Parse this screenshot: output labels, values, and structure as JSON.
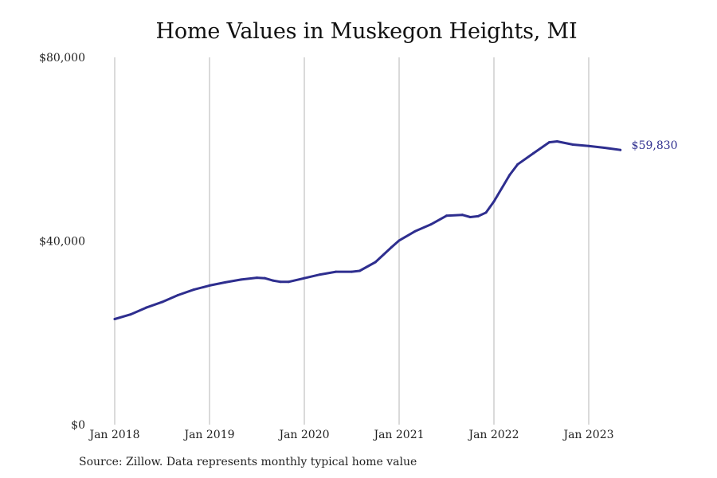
{
  "chart_data": {
    "type": "line",
    "title": "Home Values in Muskegon Heights, MI",
    "xlabel": "",
    "ylabel": "",
    "ylim": [
      0,
      80000
    ],
    "yticks": [
      {
        "value": 0,
        "label": "$0"
      },
      {
        "value": 40000,
        "label": "$40,000"
      },
      {
        "value": 80000,
        "label": "$80,000"
      }
    ],
    "xticks": [
      {
        "value": "2018-01",
        "label": "Jan 2018"
      },
      {
        "value": "2019-01",
        "label": "Jan 2019"
      },
      {
        "value": "2020-01",
        "label": "Jan 2020"
      },
      {
        "value": "2021-01",
        "label": "Jan 2021"
      },
      {
        "value": "2022-01",
        "label": "Jan 2022"
      },
      {
        "value": "2023-01",
        "label": "Jan 2023"
      }
    ],
    "grid": "vertical",
    "series": [
      {
        "color": "#2e2e8f",
        "end_label": "$59,830",
        "points": [
          {
            "x": "2018-01",
            "y": 23000
          },
          {
            "x": "2018-03",
            "y": 24000
          },
          {
            "x": "2018-05",
            "y": 25500
          },
          {
            "x": "2018-07",
            "y": 26700
          },
          {
            "x": "2018-09",
            "y": 28200
          },
          {
            "x": "2018-11",
            "y": 29400
          },
          {
            "x": "2019-01",
            "y": 30300
          },
          {
            "x": "2019-03",
            "y": 31000
          },
          {
            "x": "2019-05",
            "y": 31600
          },
          {
            "x": "2019-07",
            "y": 32000
          },
          {
            "x": "2019-08",
            "y": 31900
          },
          {
            "x": "2019-09",
            "y": 31400
          },
          {
            "x": "2019-10",
            "y": 31100
          },
          {
            "x": "2019-11",
            "y": 31100
          },
          {
            "x": "2020-01",
            "y": 31900
          },
          {
            "x": "2020-03",
            "y": 32700
          },
          {
            "x": "2020-05",
            "y": 33300
          },
          {
            "x": "2020-07",
            "y": 33300
          },
          {
            "x": "2020-08",
            "y": 33500
          },
          {
            "x": "2020-10",
            "y": 35400
          },
          {
            "x": "2020-12",
            "y": 38600
          },
          {
            "x": "2021-01",
            "y": 40100
          },
          {
            "x": "2021-03",
            "y": 42100
          },
          {
            "x": "2021-05",
            "y": 43600
          },
          {
            "x": "2021-07",
            "y": 45500
          },
          {
            "x": "2021-09",
            "y": 45700
          },
          {
            "x": "2021-10",
            "y": 45200
          },
          {
            "x": "2021-11",
            "y": 45400
          },
          {
            "x": "2021-12",
            "y": 46200
          },
          {
            "x": "2022-01",
            "y": 48600
          },
          {
            "x": "2022-03",
            "y": 54400
          },
          {
            "x": "2022-04",
            "y": 56700
          },
          {
            "x": "2022-06",
            "y": 59100
          },
          {
            "x": "2022-08",
            "y": 61500
          },
          {
            "x": "2022-09",
            "y": 61700
          },
          {
            "x": "2022-11",
            "y": 61000
          },
          {
            "x": "2023-01",
            "y": 60700
          },
          {
            "x": "2023-03",
            "y": 60300
          },
          {
            "x": "2023-05",
            "y": 59830
          }
        ]
      }
    ]
  },
  "footer": {
    "source_text": "Source: Zillow. Data represents monthly typical home value"
  }
}
